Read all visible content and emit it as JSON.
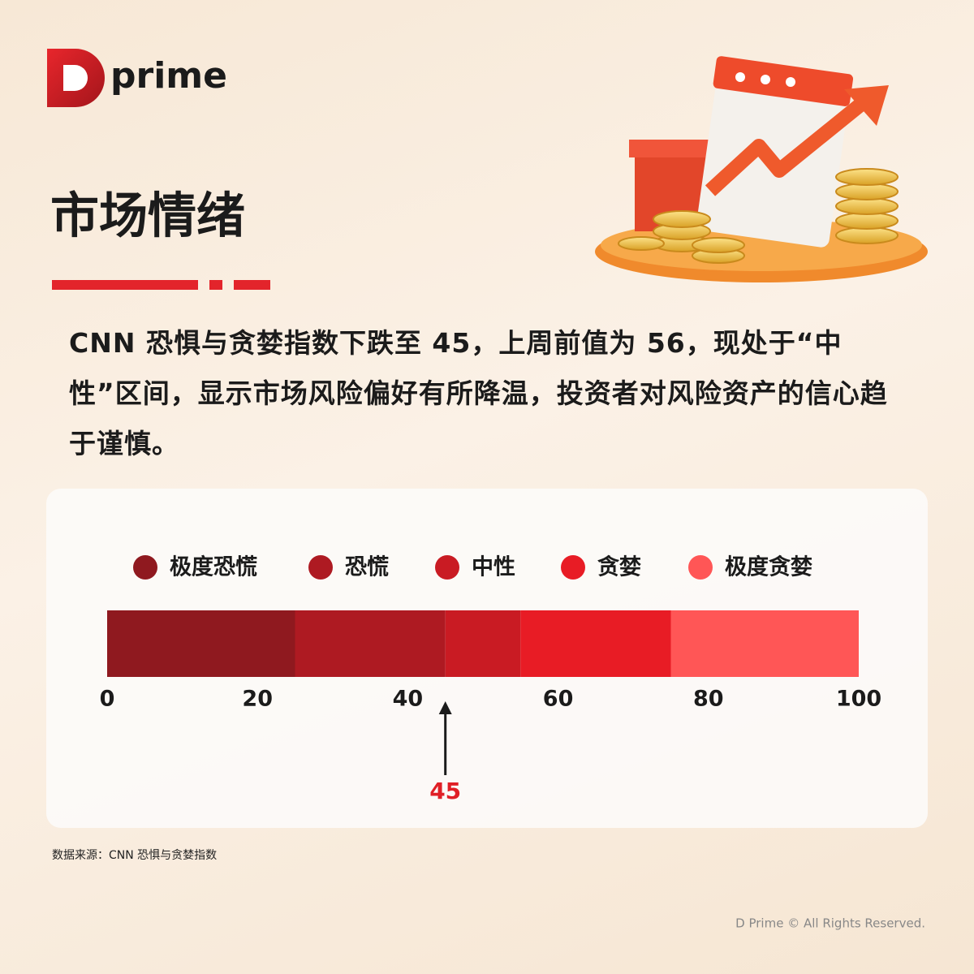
{
  "logo": "prime",
  "title": "市场情绪",
  "body": "CNN 恐惧与贪婪指数下跌至 45，上周前值为 56，现处于“中性”区间，显示市场风险偏好有所降温，投资者对风险资产的信心趋于谨慎。",
  "chart_data": {
    "type": "stacked-range",
    "categories": [
      "极度恐慌",
      "恐慌",
      "中性",
      "贪婪",
      "极度贪婪"
    ],
    "values": [
      25,
      20,
      10,
      20,
      25
    ],
    "colors": [
      "#8f191f",
      "#ae1a22",
      "#c91b23",
      "#e81c25",
      "#ff5656"
    ],
    "xlim": [
      0,
      100
    ],
    "xticks": [
      0,
      20,
      40,
      60,
      80,
      100
    ],
    "pointer": 45,
    "pointer_color": "#e01f26"
  },
  "source": "数据来源：CNN 恐惧与贪婪指数",
  "copyright": "D Prime © All Rights Reserved."
}
